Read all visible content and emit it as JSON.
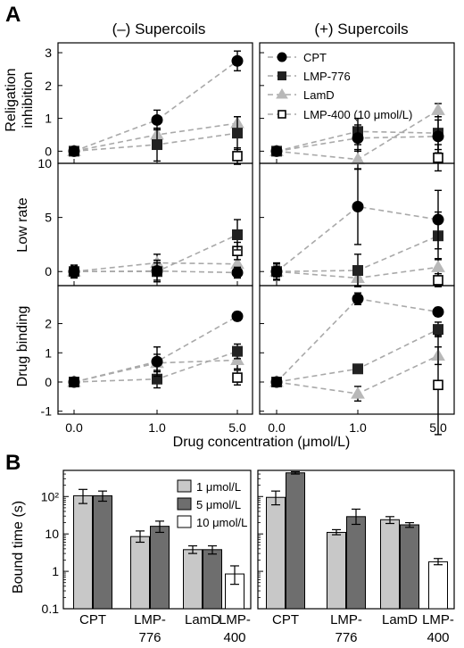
{
  "panel_a_label": "A",
  "panel_b_label": "B",
  "column_titles": [
    "(–) Supercoils",
    "(+) Supercoils"
  ],
  "row_labels": [
    [
      "Religation",
      "inhibition"
    ],
    [
      "Low rate"
    ],
    [
      "Drug binding"
    ]
  ],
  "x_tick_labels": [
    "0.0",
    "1.0",
    "5.0"
  ],
  "x_axis_title": "Drug concentration (μmol/L)",
  "legend_a": [
    "CPT",
    "LMP-776",
    "LamD",
    "LMP-400 (10 μmol/L)"
  ],
  "legend_b": [
    "1 μmol/L",
    "5 μmol/L",
    "10 μmol/L"
  ],
  "y_axis_b_title": "Bound time (s)",
  "y_ticks_b": [
    "0.1",
    "1",
    "10",
    "10²"
  ],
  "categories_b": [
    [
      "CPT"
    ],
    [
      "LMP-",
      "776"
    ],
    [
      "LamD"
    ],
    [
      "LMP-",
      "400"
    ]
  ],
  "colors": {
    "cpt": "#000000",
    "lmp776": "#222222",
    "lamd": "#b8b8b8",
    "lmp400": "#ffffff",
    "bar_1umol": "#c8c8c8",
    "bar_5umol": "#6e6e6e",
    "bar_10umol": "#ffffff",
    "connector": "#a9a9a9"
  },
  "chart_data": [
    {
      "type": "scatter",
      "panel": "A",
      "row": "Religation inhibition",
      "column": "(–) Supercoils",
      "x": [
        0,
        1,
        5
      ],
      "x_ticks": [
        "0.0",
        "1.0",
        "5.0"
      ],
      "ylim": [
        0,
        3.3
      ],
      "series": [
        {
          "name": "CPT",
          "values": [
            0,
            0.95,
            2.75
          ],
          "errors": [
            0.05,
            0.3,
            0.3
          ]
        },
        {
          "name": "LMP-776",
          "values": [
            0,
            0.2,
            0.55
          ],
          "errors": [
            0.05,
            0.5,
            0.5
          ]
        },
        {
          "name": "LamD",
          "values": [
            0,
            0.5,
            0.85
          ],
          "errors": [
            0.05,
            0.2,
            0.2
          ]
        },
        {
          "name": "LMP-400 (10 μmol/L)",
          "values": [
            null,
            null,
            -0.15
          ],
          "errors": [
            null,
            null,
            0.25
          ]
        }
      ]
    },
    {
      "type": "scatter",
      "panel": "A",
      "row": "Religation inhibition",
      "column": "(+) Supercoils",
      "x": [
        0,
        1,
        5
      ],
      "x_ticks": [
        "0.0",
        "1.0",
        "5.0"
      ],
      "series": [
        {
          "name": "CPT",
          "values": [
            0,
            0.4,
            0.45
          ],
          "errors": [
            0.05,
            0.4,
            0.5
          ]
        },
        {
          "name": "LMP-776",
          "values": [
            0,
            0.6,
            0.55
          ],
          "errors": [
            0.05,
            0.4,
            0.5
          ]
        },
        {
          "name": "LamD",
          "values": [
            0,
            -0.25,
            1.25
          ],
          "errors": [
            0.05,
            0.3,
            0.2
          ]
        },
        {
          "name": "LMP-400 (10 μmol/L)",
          "values": [
            null,
            null,
            -0.2
          ],
          "errors": [
            null,
            null,
            0.4
          ]
        }
      ]
    },
    {
      "type": "scatter",
      "panel": "A",
      "row": "Low rate",
      "column": "(–) Supercoils",
      "x": [
        0,
        1,
        5
      ],
      "x_ticks": [
        "0.0",
        "1.0",
        "5.0"
      ],
      "y_ticks": [
        0,
        5,
        10
      ],
      "ylim": [
        -1.3,
        10
      ],
      "series": [
        {
          "name": "CPT",
          "values": [
            0,
            0.05,
            -0.1
          ],
          "errors": [
            0.5,
            1.0,
            0.5
          ]
        },
        {
          "name": "LMP-776",
          "values": [
            0,
            0,
            3.4
          ],
          "errors": [
            0.4,
            0.8,
            1.4
          ]
        },
        {
          "name": "LamD",
          "values": [
            0,
            0.8,
            0.7
          ],
          "errors": [
            0.6,
            0.8,
            0.8
          ]
        },
        {
          "name": "LMP-400 (10 μmol/L)",
          "values": [
            null,
            null,
            1.9
          ],
          "errors": [
            null,
            null,
            0.8
          ]
        }
      ]
    },
    {
      "type": "scatter",
      "panel": "A",
      "row": "Low rate",
      "column": "(+) Supercoils",
      "x": [
        0,
        1,
        5
      ],
      "x_ticks": [
        "0.0",
        "1.0",
        "5.0"
      ],
      "series": [
        {
          "name": "CPT",
          "values": [
            0,
            6.0,
            4.8
          ],
          "errors": [
            0.8,
            3.5,
            2.7
          ]
        },
        {
          "name": "LMP-776",
          "values": [
            0,
            0.1,
            3.3
          ],
          "errors": [
            0.7,
            1.5,
            2.2
          ]
        },
        {
          "name": "LamD",
          "values": [
            0,
            -0.6,
            0.4
          ],
          "errors": [
            0.5,
            0.7,
            0.8
          ]
        },
        {
          "name": "LMP-400 (10 μmol/L)",
          "values": [
            null,
            null,
            -0.8
          ],
          "errors": [
            null,
            null,
            0.6
          ]
        }
      ]
    },
    {
      "type": "scatter",
      "panel": "A",
      "row": "Drug binding",
      "column": "(–) Supercoils",
      "x": [
        0,
        1,
        5
      ],
      "x_ticks": [
        "0.0",
        "1.0",
        "5.0"
      ],
      "y_ticks": [
        -1,
        0,
        1,
        2
      ],
      "ylim": [
        -1.1,
        3.3
      ],
      "series": [
        {
          "name": "CPT",
          "values": [
            0,
            0.7,
            2.25
          ],
          "errors": [
            0.05,
            0.5,
            0.15
          ]
        },
        {
          "name": "LMP-776",
          "values": [
            0,
            0.1,
            1.05
          ],
          "errors": [
            0.05,
            0.3,
            0.25
          ]
        },
        {
          "name": "LamD",
          "values": [
            0,
            0.65,
            0.75
          ],
          "errors": [
            0.05,
            0.3,
            0.3
          ]
        },
        {
          "name": "LMP-400 (10 μmol/L)",
          "values": [
            null,
            null,
            0.15
          ],
          "errors": [
            null,
            null,
            0.25
          ]
        }
      ]
    },
    {
      "type": "scatter",
      "panel": "A",
      "row": "Drug binding",
      "column": "(+) Supercoils",
      "x": [
        0,
        1,
        5
      ],
      "x_ticks": [
        "0.0",
        "1.0",
        "5.0"
      ],
      "series": [
        {
          "name": "CPT",
          "values": [
            0,
            2.85,
            2.4
          ],
          "errors": [
            0.05,
            0.2,
            0.15
          ]
        },
        {
          "name": "LMP-776",
          "values": [
            0,
            0.45,
            1.8
          ],
          "errors": [
            0.05,
            0.15,
            0.25
          ]
        },
        {
          "name": "LamD",
          "values": [
            0,
            -0.4,
            0.9
          ],
          "errors": [
            0.05,
            0.25,
            0.3
          ]
        },
        {
          "name": "LMP-400 (10 μmol/L)",
          "values": [
            null,
            null,
            -0.1
          ],
          "errors": [
            null,
            null,
            1.7
          ]
        }
      ]
    },
    {
      "type": "bar",
      "panel": "B",
      "column": "(–) Supercoils",
      "ylabel": "Bound time (s)",
      "y_scale": "log",
      "ylim": [
        0.1,
        500
      ],
      "categories": [
        "CPT",
        "LMP-776",
        "LamD",
        "LMP-400"
      ],
      "series": [
        {
          "name": "1 μmol/L",
          "values": [
            105,
            8.5,
            3.8,
            null
          ],
          "err_low": [
            65,
            6,
            3,
            null
          ],
          "err_high": [
            155,
            12,
            4.8,
            null
          ]
        },
        {
          "name": "5 μmol/L",
          "values": [
            105,
            16,
            3.8,
            null
          ],
          "err_low": [
            75,
            11,
            2.9,
            null
          ],
          "err_high": [
            140,
            22,
            4.8,
            null
          ]
        },
        {
          "name": "10 μmol/L",
          "values": [
            null,
            null,
            null,
            0.85
          ],
          "err_low": [
            null,
            null,
            null,
            0.45
          ],
          "err_high": [
            null,
            null,
            null,
            1.4
          ]
        }
      ]
    },
    {
      "type": "bar",
      "panel": "B",
      "column": "(+) Supercoils",
      "ylabel": "Bound time (s)",
      "y_scale": "log",
      "ylim": [
        0.1,
        500
      ],
      "categories": [
        "CPT",
        "LMP-776",
        "LamD",
        "LMP-400"
      ],
      "series": [
        {
          "name": "1 μmol/L",
          "values": [
            95,
            11,
            24,
            null
          ],
          "err_low": [
            60,
            9.5,
            19,
            null
          ],
          "err_high": [
            140,
            13,
            29,
            null
          ]
        },
        {
          "name": "5 μmol/L",
          "values": [
            430,
            29,
            17.5,
            null
          ],
          "err_low": [
            400,
            18,
            15,
            null
          ],
          "err_high": [
            460,
            46,
            20,
            null
          ]
        },
        {
          "name": "10 μmol/L",
          "values": [
            null,
            null,
            null,
            1.8
          ],
          "err_low": [
            null,
            null,
            null,
            1.5
          ],
          "err_high": [
            null,
            null,
            null,
            2.2
          ]
        }
      ]
    }
  ]
}
